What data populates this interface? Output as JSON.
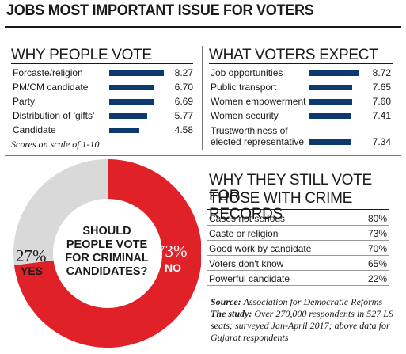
{
  "title": "JOBS MOST IMPORTANT ISSUE FOR VOTERS",
  "why_vote": {
    "title": "WHY PEOPLE VOTE",
    "note": "Scores on scale of 1-10",
    "max": 10
  },
  "expect": {
    "title": "WHAT VOTERS EXPECT"
  },
  "crime": {
    "title_line1": "WHY THEY STILL VOTE FOR",
    "title_line2": "THOSE WITH CRIME RECORDS"
  },
  "donut": {
    "question_lines": [
      "SHOULD",
      "PEOPLE VOTE",
      "FOR CRIMINAL",
      "CANDIDATES?"
    ],
    "yes_pct": "27%",
    "yes_label": "YES",
    "no_pct": "73%",
    "no_label": "NO",
    "yes_color": "#d9d9d9",
    "no_color": "#e02128"
  },
  "source": {
    "source_label": "Source:",
    "source_text": "Association for Democratic Reforms",
    "study_label": "The study:",
    "study_text": "Over 270,000 respondents in 527 LS seats; surveyed Jan-April 2017; above data for Gujarat respondents"
  },
  "chart_data": [
    {
      "type": "bar",
      "title": "WHY PEOPLE VOTE",
      "categories": [
        "Forcaste/religion",
        "PM/CM candidate",
        "Party",
        "Distribution of 'gifts'",
        "Candidate"
      ],
      "values": [
        8.27,
        6.7,
        6.69,
        5.77,
        4.58
      ],
      "labels": [
        "8.27",
        "6.70",
        "6.69",
        "5.77",
        "4.58"
      ],
      "xlim": [
        0,
        10
      ],
      "color": "#0d3a6e"
    },
    {
      "type": "bar",
      "title": "WHAT VOTERS EXPECT",
      "categories": [
        "Job opportunities",
        "Public transport",
        "Women empowerment",
        "Women security",
        "Trustworthiness of|elected representative"
      ],
      "values": [
        8.72,
        7.65,
        7.6,
        7.41,
        7.34
      ],
      "labels": [
        "8.72",
        "7.65",
        "7.60",
        "7.41",
        "7.34"
      ],
      "xlim": [
        0,
        10
      ],
      "color": "#0d3a6e"
    },
    {
      "type": "table",
      "title": "WHY THEY STILL VOTE FOR THOSE WITH CRIME RECORDS",
      "rows": [
        {
          "label": "Cases not serious",
          "value": "80%"
        },
        {
          "label": "Caste or religion",
          "value": "73%"
        },
        {
          "label": "Good work by candidate",
          "value": "70%"
        },
        {
          "label": "Voters don't know",
          "value": "65%"
        },
        {
          "label": "Powerful candidate",
          "value": "22%"
        }
      ]
    },
    {
      "type": "pie",
      "title": "SHOULD PEOPLE VOTE FOR CRIMINAL CANDIDATES?",
      "categories": [
        "YES",
        "NO"
      ],
      "values": [
        27,
        73
      ],
      "colors": [
        "#d9d9d9",
        "#e02128"
      ]
    }
  ]
}
